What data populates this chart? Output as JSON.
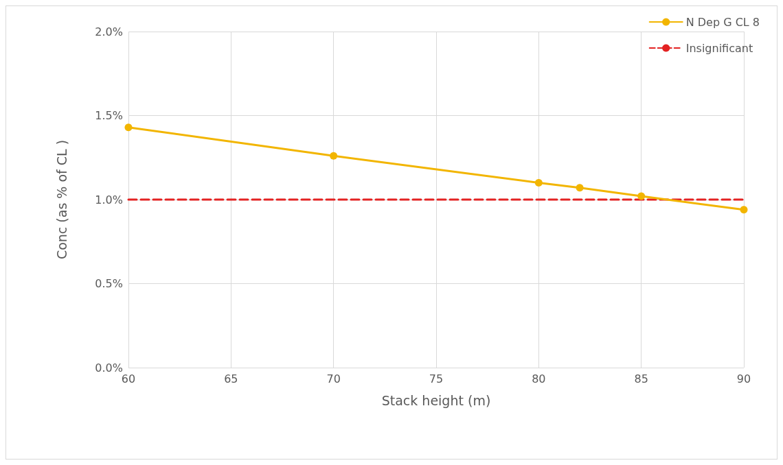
{
  "chart_data": {
    "type": "line",
    "xlabel": "Stack height (m)",
    "ylabel": "Conc (as % of CL )",
    "xlim": [
      60,
      90
    ],
    "xticks": [
      60,
      65,
      70,
      75,
      80,
      85,
      90
    ],
    "ylim": [
      0,
      2
    ],
    "yticks": [
      {
        "value": 0,
        "label": "0.0%"
      },
      {
        "value": 0.5,
        "label": "0.5%"
      },
      {
        "value": 1,
        "label": "1.0%"
      },
      {
        "value": 1.5,
        "label": "1.5%"
      },
      {
        "value": 2,
        "label": "2.0%"
      }
    ],
    "grid": true,
    "legend": "top right",
    "series": [
      {
        "name": "N Dep G CL 8",
        "color": "#f2b500",
        "x": [
          60,
          70,
          80,
          82,
          85,
          90
        ],
        "values": [
          1.43,
          1.26,
          1.1,
          1.07,
          1.02,
          0.94
        ],
        "marker": "circle",
        "line_style": "solid"
      },
      {
        "name": "Insignificant",
        "color": "#e32222",
        "x": [
          60,
          90
        ],
        "values": [
          1,
          1
        ],
        "marker": "none",
        "line_style": "dashed"
      }
    ]
  }
}
